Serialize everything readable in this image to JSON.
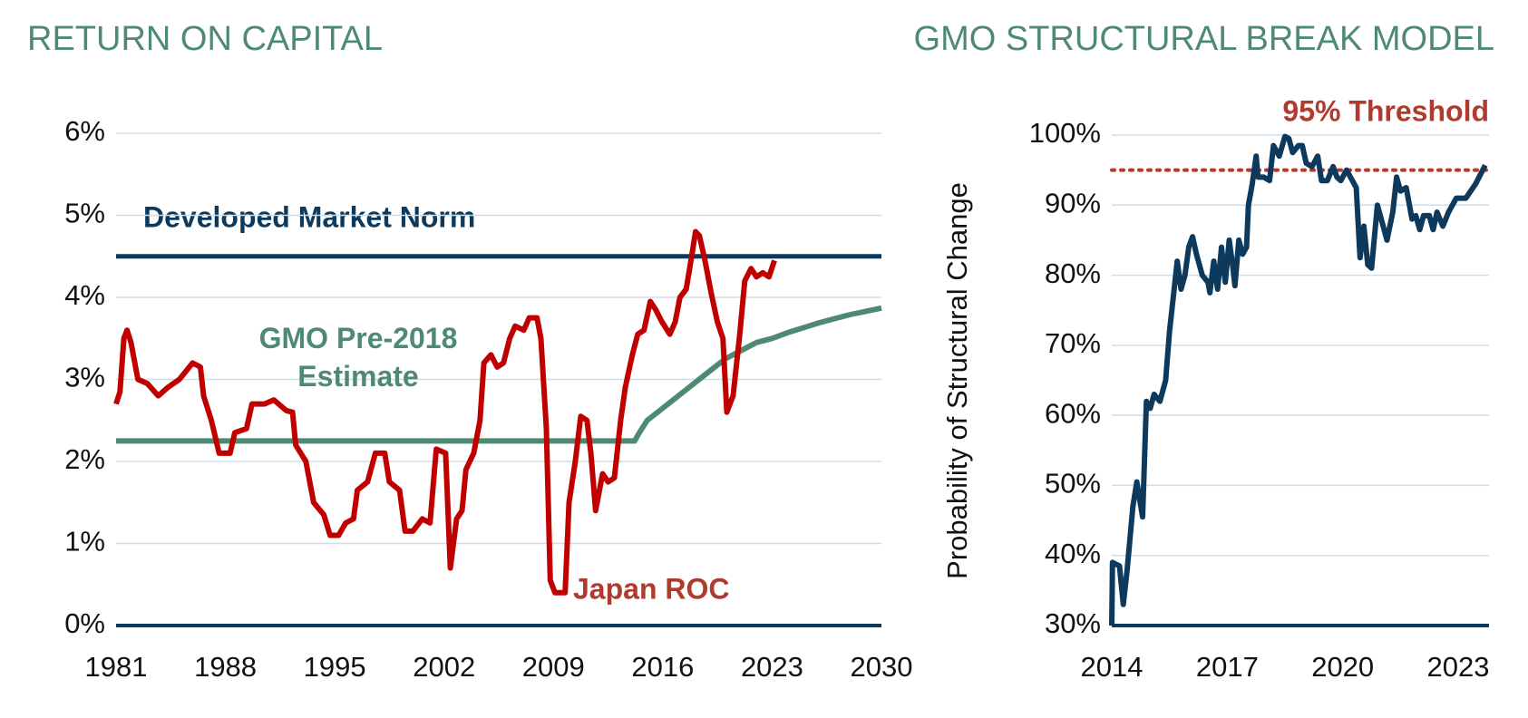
{
  "chart_data": [
    {
      "type": "line",
      "title": "RETURN ON CAPITAL",
      "xlim": [
        1981,
        2030
      ],
      "xticks": [
        1981,
        1988,
        1995,
        2002,
        2009,
        2016,
        2023,
        2030
      ],
      "ylim": [
        0,
        6
      ],
      "yticks": [
        {
          "value": 0,
          "label": "0%"
        },
        {
          "value": 1,
          "label": "1%"
        },
        {
          "value": 2,
          "label": "2%"
        },
        {
          "value": 3,
          "label": "3%"
        },
        {
          "value": 4,
          "label": "4%"
        },
        {
          "value": 5,
          "label": "5%"
        },
        {
          "value": 6,
          "label": "6%"
        }
      ],
      "grid": true,
      "series": [
        {
          "name": "Developed Market Norm",
          "color": "#0d3a5c",
          "x": [
            1981,
            2030
          ],
          "values": [
            4.5,
            4.5
          ]
        },
        {
          "name": "GMO Pre-2018 Estimate",
          "color": "#4e8a72",
          "x": [
            1981,
            2014.2,
            2014.5,
            2015,
            2016,
            2017,
            2018,
            2019,
            2020,
            2021,
            2022,
            2023,
            2024,
            2025,
            2026,
            2027,
            2028,
            2029,
            2030
          ],
          "values": [
            2.25,
            2.25,
            2.35,
            2.5,
            2.65,
            2.8,
            2.95,
            3.1,
            3.25,
            3.35,
            3.45,
            3.5,
            3.57,
            3.63,
            3.69,
            3.74,
            3.79,
            3.83,
            3.87
          ]
        },
        {
          "name": "Japan ROC",
          "color": "#c00000",
          "x": [
            1981.0,
            1981.25,
            1981.5,
            1981.7,
            1981.95,
            1982.4,
            1983.0,
            1983.7,
            1984.3,
            1985.05,
            1985.9,
            1986.4,
            1986.6,
            1987.1,
            1987.6,
            1988.3,
            1988.6,
            1989.35,
            1989.7,
            1990.5,
            1991.1,
            1991.9,
            1992.3,
            1992.5,
            1993.15,
            1993.65,
            1994.3,
            1994.7,
            1995.25,
            1995.7,
            1996.2,
            1996.45,
            1997.1,
            1997.6,
            1998.2,
            1998.5,
            1999.15,
            1999.5,
            2000.0,
            2000.6,
            2001.1,
            2001.5,
            2002.1,
            2002.4,
            2002.8,
            2003.15,
            2003.4,
            2003.9,
            2004.3,
            2004.55,
            2005.0,
            2005.4,
            2005.8,
            2006.2,
            2006.55,
            2007.1,
            2007.45,
            2007.95,
            2008.2,
            2008.55,
            2008.8,
            2009.1,
            2009.75,
            2010.0,
            2010.4,
            2010.75,
            2011.15,
            2011.4,
            2011.7,
            2012.15,
            2012.5,
            2012.9,
            2013.3,
            2013.6,
            2014.05,
            2014.4,
            2014.8,
            2015.2,
            2015.55,
            2015.95,
            2016.45,
            2016.8,
            2017.1,
            2017.5,
            2017.85,
            2018.1,
            2018.35,
            2018.7,
            2019.1,
            2019.5,
            2019.85,
            2020.1,
            2020.5,
            2020.9,
            2021.25,
            2021.65,
            2022.0,
            2022.4,
            2022.8,
            2023.15
          ],
          "values": [
            2.7,
            2.85,
            3.5,
            3.6,
            3.45,
            3.0,
            2.95,
            2.8,
            2.9,
            3.0,
            3.2,
            3.15,
            2.8,
            2.5,
            2.1,
            2.1,
            2.35,
            2.4,
            2.7,
            2.7,
            2.75,
            2.62,
            2.6,
            2.2,
            2.0,
            1.5,
            1.35,
            1.1,
            1.1,
            1.25,
            1.3,
            1.65,
            1.75,
            2.1,
            2.1,
            1.75,
            1.65,
            1.15,
            1.15,
            1.3,
            1.25,
            2.15,
            2.1,
            0.7,
            1.3,
            1.4,
            1.9,
            2.1,
            2.5,
            3.2,
            3.3,
            3.15,
            3.2,
            3.5,
            3.65,
            3.6,
            3.75,
            3.75,
            3.5,
            2.4,
            0.55,
            0.4,
            0.4,
            1.5,
            2.0,
            2.55,
            2.5,
            2.1,
            1.4,
            1.85,
            1.75,
            1.8,
            2.5,
            2.9,
            3.3,
            3.55,
            3.6,
            3.95,
            3.85,
            3.7,
            3.55,
            3.7,
            4.0,
            4.1,
            4.5,
            4.8,
            4.75,
            4.45,
            4.05,
            3.7,
            3.5,
            2.6,
            2.8,
            3.5,
            4.2,
            4.35,
            4.25,
            4.3,
            4.25,
            4.45
          ]
        }
      ]
    },
    {
      "type": "line",
      "title": "GMO STRUCTURAL BREAK MODEL",
      "y_label": "Probability of Structural Change",
      "xlim": [
        2014,
        2023.8
      ],
      "xticks": [
        2014,
        2017,
        2020,
        2023
      ],
      "ylim": [
        30,
        100
      ],
      "yticks": [
        {
          "value": 30,
          "label": "30%"
        },
        {
          "value": 40,
          "label": "40%"
        },
        {
          "value": 50,
          "label": "50%"
        },
        {
          "value": 60,
          "label": "60%"
        },
        {
          "value": 70,
          "label": "70%"
        },
        {
          "value": 80,
          "label": "80%"
        },
        {
          "value": 90,
          "label": "90%"
        },
        {
          "value": 100,
          "label": "100%"
        }
      ],
      "grid": true,
      "threshold": 95,
      "threshold_label": "95% Threshold",
      "threshold_color": "#b03a2e",
      "series": [
        {
          "name": "Probability of Structural Change",
          "color": "#0d3a5c",
          "x": [
            2014.0,
            2014.02,
            2014.2,
            2014.3,
            2014.4,
            2014.55,
            2014.65,
            2014.8,
            2014.9,
            2015.0,
            2015.1,
            2015.25,
            2015.4,
            2015.5,
            2015.7,
            2015.8,
            2015.9,
            2016.0,
            2016.1,
            2016.2,
            2016.35,
            2016.5,
            2016.55,
            2016.65,
            2016.75,
            2016.85,
            2016.95,
            2017.05,
            2017.15,
            2017.2,
            2017.3,
            2017.4,
            2017.5,
            2017.55,
            2017.65,
            2017.75,
            2017.8,
            2017.95,
            2018.1,
            2018.2,
            2018.35,
            2018.5,
            2018.6,
            2018.7,
            2018.85,
            2018.95,
            2019.05,
            2019.2,
            2019.35,
            2019.45,
            2019.6,
            2019.75,
            2019.85,
            2019.95,
            2020.1,
            2020.25,
            2020.35,
            2020.45,
            2020.55,
            2020.65,
            2020.75,
            2020.9,
            2021.05,
            2021.15,
            2021.3,
            2021.4,
            2021.5,
            2021.65,
            2021.8,
            2021.9,
            2022.0,
            2022.1,
            2022.25,
            2022.35,
            2022.45,
            2022.6,
            2022.75,
            2022.95,
            2023.2,
            2023.45,
            2023.7
          ],
          "values": [
            30,
            39,
            38.5,
            33,
            38,
            47,
            50.5,
            45.5,
            62,
            61,
            63,
            62,
            65,
            72,
            82,
            78,
            80,
            84,
            85.5,
            83,
            80,
            79,
            77.5,
            82,
            78,
            84,
            79,
            85,
            81,
            78.5,
            85,
            83,
            84,
            90,
            93,
            97,
            94,
            94,
            93.5,
            98.5,
            97,
            99.8,
            99.5,
            97.5,
            98.5,
            98.5,
            96,
            95.5,
            97,
            93.5,
            93.5,
            95.5,
            94,
            93.5,
            95,
            93.5,
            92.5,
            82.5,
            87,
            81.5,
            81,
            90,
            87,
            85,
            89,
            94,
            92,
            92.5,
            88,
            88.5,
            86.5,
            88.5,
            88.5,
            86.5,
            89,
            87,
            89,
            91,
            91,
            93,
            95.7
          ]
        }
      ]
    }
  ]
}
